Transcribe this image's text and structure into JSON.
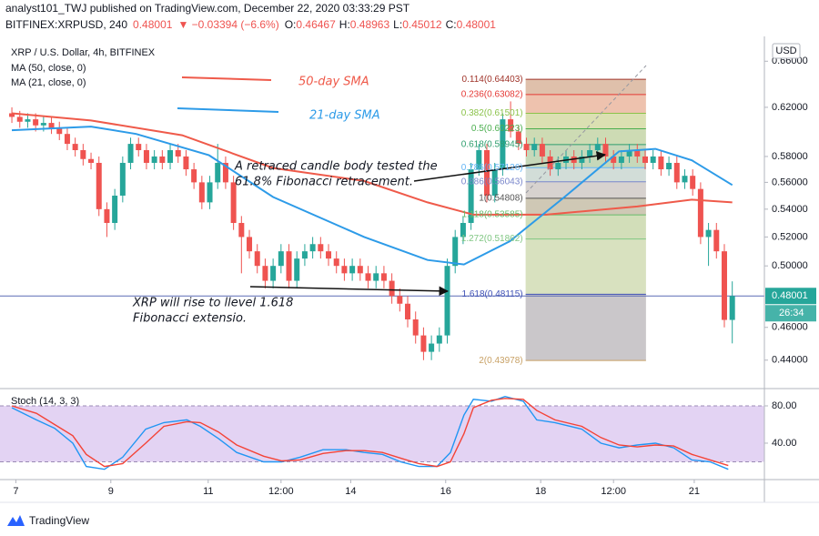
{
  "header": {
    "line1": "analyst101_TWJ published on TradingView.com, December 22, 2020 03:33:29 PST",
    "symbol": "BITFINEX:XRPUSD, 240",
    "last": "0.48001",
    "change": "▼ −0.03394 (−6.6%)",
    "ohlc": [
      {
        "key": "O:",
        "value": "0.46467"
      },
      {
        "key": "H:",
        "value": "0.48963"
      },
      {
        "key": "L:",
        "value": "0.45012"
      },
      {
        "key": "C:",
        "value": "0.48001"
      }
    ]
  },
  "footer": {
    "brand": "TradingView"
  },
  "chart_data": [
    {
      "type": "candlestick",
      "title": "XRP / U.S. Dollar, 4h, BITFINEX",
      "currency": "USD",
      "countdown": "26:34",
      "up_color": "#26a69a",
      "down_color": "#ef5350",
      "log_scale": true,
      "ylim": [
        0.4244,
        0.6784
      ],
      "xlim": [
        -1.5,
        95.06
      ],
      "yticks": [
        {
          "value": 0.44,
          "label": "0.44000"
        },
        {
          "value": 0.46,
          "label": "0.46000"
        },
        {
          "value": 0.5,
          "label": "0.50000"
        },
        {
          "value": 0.52,
          "label": "0.52000"
        },
        {
          "value": 0.54,
          "label": "0.54000"
        },
        {
          "value": 0.56,
          "label": "0.56000"
        },
        {
          "value": 0.58,
          "label": "0.58000"
        },
        {
          "value": 0.62,
          "label": "0.62000"
        },
        {
          "value": 0.66,
          "label": "0.66000"
        }
      ],
      "xticks": [
        {
          "value": 0.5,
          "label": "7"
        },
        {
          "value": 12.5,
          "label": "9"
        },
        {
          "value": 24.8,
          "label": "11"
        },
        {
          "value": 34,
          "label": "12:00"
        },
        {
          "value": 42.8,
          "label": "14"
        },
        {
          "value": 54.8,
          "label": "16"
        },
        {
          "value": 66.8,
          "label": "18"
        },
        {
          "value": 76,
          "label": "12:00"
        },
        {
          "value": 86.2,
          "label": "21"
        }
      ],
      "open": [
        0.615,
        0.612,
        0.608,
        0.61,
        0.605,
        0.607,
        0.603,
        0.598,
        0.59,
        0.585,
        0.578,
        0.575,
        0.54,
        0.53,
        0.55,
        0.575,
        0.59,
        0.585,
        0.575,
        0.58,
        0.575,
        0.585,
        0.58,
        0.57,
        0.56,
        0.545,
        0.56,
        0.575,
        0.56,
        0.53,
        0.52,
        0.51,
        0.5,
        0.49,
        0.5,
        0.51,
        0.49,
        0.505,
        0.51,
        0.515,
        0.51,
        0.505,
        0.5,
        0.495,
        0.5,
        0.495,
        0.49,
        0.495,
        0.49,
        0.48,
        0.475,
        0.465,
        0.455,
        0.445,
        0.45,
        0.455,
        0.5,
        0.52,
        0.53,
        0.57,
        0.585,
        0.55,
        0.57,
        0.61,
        0.6,
        0.59,
        0.585,
        0.59,
        0.58,
        0.57,
        0.575,
        0.58,
        0.575,
        0.58,
        0.585,
        0.59,
        0.58,
        0.575,
        0.58,
        0.585,
        0.58,
        0.575,
        0.58,
        0.57,
        0.575,
        0.56,
        0.565,
        0.555,
        0.52,
        0.525,
        0.51,
        0.46467
      ],
      "high": [
        0.62,
        0.617,
        0.615,
        0.615,
        0.612,
        0.612,
        0.608,
        0.603,
        0.595,
        0.59,
        0.583,
        0.58,
        0.545,
        0.555,
        0.58,
        0.595,
        0.595,
        0.59,
        0.585,
        0.585,
        0.59,
        0.59,
        0.585,
        0.575,
        0.565,
        0.565,
        0.59,
        0.58,
        0.565,
        0.535,
        0.525,
        0.515,
        0.505,
        0.505,
        0.515,
        0.515,
        0.51,
        0.515,
        0.52,
        0.52,
        0.515,
        0.51,
        0.505,
        0.505,
        0.505,
        0.5,
        0.5,
        0.5,
        0.495,
        0.485,
        0.48,
        0.47,
        0.46,
        0.455,
        0.46,
        0.505,
        0.525,
        0.535,
        0.575,
        0.59,
        0.59,
        0.575,
        0.615,
        0.625,
        0.605,
        0.595,
        0.595,
        0.595,
        0.585,
        0.58,
        0.585,
        0.585,
        0.585,
        0.59,
        0.595,
        0.595,
        0.585,
        0.585,
        0.59,
        0.59,
        0.585,
        0.585,
        0.585,
        0.58,
        0.58,
        0.57,
        0.57,
        0.56,
        0.53,
        0.53,
        0.515,
        0.48963
      ],
      "low": [
        0.607,
        0.603,
        0.603,
        0.6,
        0.6,
        0.598,
        0.593,
        0.585,
        0.58,
        0.573,
        0.57,
        0.535,
        0.52,
        0.525,
        0.545,
        0.57,
        0.58,
        0.57,
        0.57,
        0.57,
        0.57,
        0.575,
        0.565,
        0.555,
        0.54,
        0.54,
        0.555,
        0.555,
        0.525,
        0.495,
        0.505,
        0.495,
        0.485,
        0.485,
        0.495,
        0.485,
        0.485,
        0.5,
        0.505,
        0.505,
        0.5,
        0.495,
        0.49,
        0.49,
        0.49,
        0.485,
        0.485,
        0.485,
        0.475,
        0.47,
        0.46,
        0.45,
        0.44,
        0.44,
        0.445,
        0.45,
        0.495,
        0.515,
        0.525,
        0.565,
        0.545,
        0.545,
        0.565,
        0.595,
        0.585,
        0.58,
        0.58,
        0.575,
        0.565,
        0.565,
        0.57,
        0.57,
        0.57,
        0.575,
        0.58,
        0.575,
        0.57,
        0.57,
        0.575,
        0.575,
        0.57,
        0.57,
        0.565,
        0.565,
        0.555,
        0.555,
        0.55,
        0.515,
        0.5,
        0.505,
        0.46,
        0.45012
      ],
      "close": [
        0.612,
        0.608,
        0.61,
        0.605,
        0.607,
        0.603,
        0.598,
        0.59,
        0.585,
        0.578,
        0.575,
        0.54,
        0.53,
        0.55,
        0.575,
        0.59,
        0.585,
        0.575,
        0.58,
        0.575,
        0.585,
        0.58,
        0.57,
        0.56,
        0.545,
        0.56,
        0.575,
        0.56,
        0.53,
        0.52,
        0.51,
        0.5,
        0.49,
        0.5,
        0.51,
        0.49,
        0.505,
        0.51,
        0.515,
        0.51,
        0.505,
        0.5,
        0.495,
        0.5,
        0.495,
        0.49,
        0.495,
        0.49,
        0.48,
        0.475,
        0.465,
        0.455,
        0.445,
        0.45,
        0.455,
        0.5,
        0.52,
        0.53,
        0.57,
        0.585,
        0.55,
        0.57,
        0.61,
        0.6,
        0.59,
        0.585,
        0.59,
        0.58,
        0.57,
        0.575,
        0.58,
        0.575,
        0.58,
        0.585,
        0.59,
        0.58,
        0.575,
        0.58,
        0.585,
        0.58,
        0.575,
        0.58,
        0.57,
        0.575,
        0.56,
        0.565,
        0.555,
        0.52,
        0.525,
        0.51,
        0.46467,
        0.48001
      ],
      "overlays": [
        {
          "name": "MA (50, close, 0)",
          "color": "#ef5a4a",
          "x": [
            0,
            10,
            21.5,
            33,
            44.5,
            52.5,
            58.3,
            67.5,
            79,
            85.9,
            91
          ],
          "values": [
            0.615,
            0.609,
            0.597,
            0.571,
            0.561,
            0.545,
            0.536,
            0.536,
            0.542,
            0.547,
            0.545
          ]
        },
        {
          "name": "MA (21, close, 0)",
          "color": "#2d9be8",
          "x": [
            0,
            10,
            15.7,
            24.9,
            33,
            44.5,
            52.5,
            57.1,
            62.9,
            69.8,
            76.7,
            81.3,
            85.9,
            91
          ],
          "values": [
            0.601,
            0.604,
            0.598,
            0.581,
            0.549,
            0.52,
            0.504,
            0.501,
            0.517,
            0.549,
            0.584,
            0.586,
            0.577,
            0.558
          ]
        }
      ],
      "fib": {
        "x_range": [
          64.9,
          80.1
        ],
        "levels": [
          {
            "label": "0.114(0.64403)",
            "value": 0.64403,
            "color": "#a0342a"
          },
          {
            "label": "0.236(0.63082)",
            "value": 0.63082,
            "color": "#e53935"
          },
          {
            "label": "0.382(0.61501)",
            "value": 0.61501,
            "color": "#8bc34a"
          },
          {
            "label": "0.5(0.60223)",
            "value": 0.60223,
            "color": "#4caf50"
          },
          {
            "label": "0.618(0.58945)",
            "value": 0.58945,
            "color": "#2e9e6e"
          },
          {
            "label": "0.786(0.57126)",
            "value": 0.57126,
            "color": "#64b5f6"
          },
          {
            "label": "0.886(0.56043)",
            "value": 0.56043,
            "color": "#7986cb"
          },
          {
            "label": "1(0.54808)",
            "value": 0.54808,
            "color": "#555555"
          },
          {
            "label": "1.118(0.53585)",
            "value": 0.53585,
            "color": "#66bb6a"
          },
          {
            "label": "1.272(0.51862)",
            "value": 0.51862,
            "color": "#81c784"
          },
          {
            "label": "1.618(0.48115)",
            "value": 0.48115,
            "color": "#3f51b5"
          },
          {
            "label": "2(0.43978)",
            "value": 0.43978,
            "color": "#c8a165"
          }
        ]
      },
      "annotations": {
        "sma50": "50-day SMA",
        "sma21": "21-day SMA",
        "retrace": [
          "A retraced candle body tested the",
          "61.8% Fibonacci retracement."
        ],
        "target": [
          "XRP will rise to llevel 1.618",
          "Fibonacci extensio."
        ]
      }
    },
    {
      "type": "line",
      "title": "Stoch (14, 3, 3)",
      "ylim": [
        2.9,
        95.6
      ],
      "band": [
        20,
        80
      ],
      "band_color": "#e3d3f3",
      "yticks": [
        {
          "value": 80,
          "label": "80.00"
        },
        {
          "value": 40,
          "label": "40.00"
        }
      ],
      "x": [
        0,
        3.1,
        5.4,
        7.7,
        9.4,
        11.7,
        14,
        16.9,
        19.2,
        22.1,
        23.8,
        26.1,
        28.4,
        31.8,
        34.1,
        36.4,
        39.3,
        42.2,
        44.5,
        46.8,
        49.1,
        51.4,
        53.7,
        55.4,
        57.1,
        58.3,
        60.6,
        62.3,
        64.6,
        66.3,
        68.6,
        72,
        74.4,
        76.7,
        79,
        81.3,
        83.6,
        85.9,
        88.2,
        90.5
      ],
      "series": [
        {
          "color": "#2196f3",
          "values": [
            78,
            65,
            56,
            40,
            15,
            12,
            25,
            55,
            62,
            65,
            58,
            45,
            30,
            20,
            20,
            25,
            33,
            33,
            30,
            28,
            20,
            15,
            15,
            30,
            70,
            87,
            85,
            90,
            85,
            65,
            62,
            55,
            40,
            35,
            38,
            40,
            35,
            22,
            20,
            12
          ]
        },
        {
          "color": "#f44336",
          "values": [
            80,
            72,
            60,
            48,
            28,
            15,
            18,
            40,
            58,
            63,
            62,
            52,
            38,
            26,
            21,
            22,
            29,
            32,
            32,
            30,
            24,
            18,
            15,
            20,
            50,
            78,
            86,
            88,
            87,
            75,
            65,
            58,
            46,
            38,
            36,
            38,
            37,
            28,
            22,
            16
          ]
        }
      ]
    }
  ]
}
